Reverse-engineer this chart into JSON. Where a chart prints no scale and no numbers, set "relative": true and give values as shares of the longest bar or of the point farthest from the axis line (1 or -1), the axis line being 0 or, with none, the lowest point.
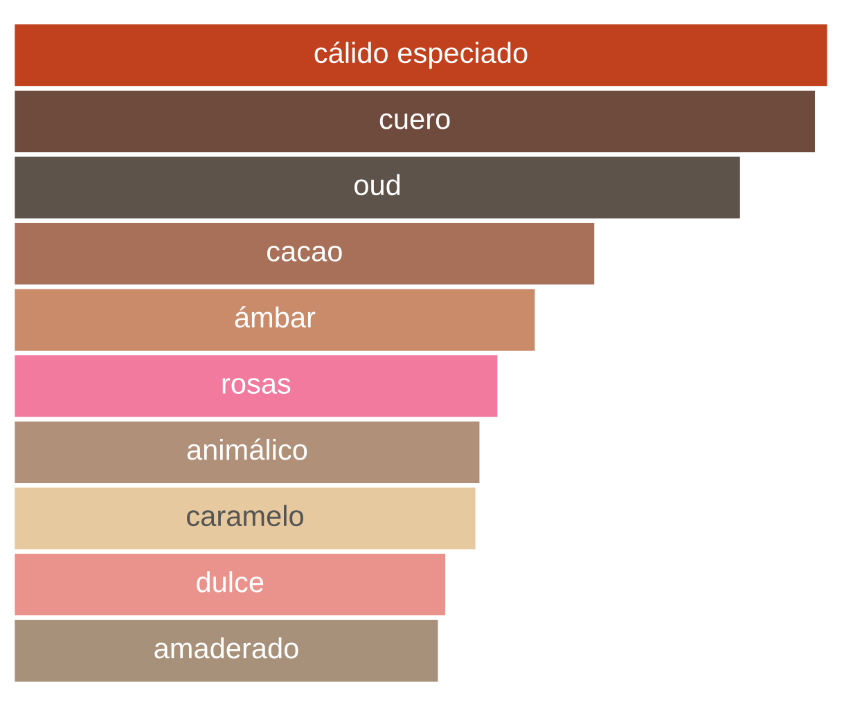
{
  "chart_data": {
    "type": "bar",
    "orientation": "horizontal",
    "relative": true,
    "categories": [
      "cálido especiado",
      "cuero",
      "oud",
      "cacao",
      "ámbar",
      "rosas",
      "animálico",
      "caramelo",
      "dulce",
      "amaderado"
    ],
    "values": [
      1,
      0.985,
      0.893,
      0.714,
      0.641,
      0.595,
      0.573,
      0.568,
      0.531,
      0.522
    ],
    "colors": [
      "#c1411f",
      "#6f4b3e",
      "#5e534b",
      "#a87058",
      "#c98b6a",
      "#f27a9e",
      "#b09078",
      "#e6c99e",
      "#ea928c",
      "#a8917a"
    ],
    "legend": false
  }
}
